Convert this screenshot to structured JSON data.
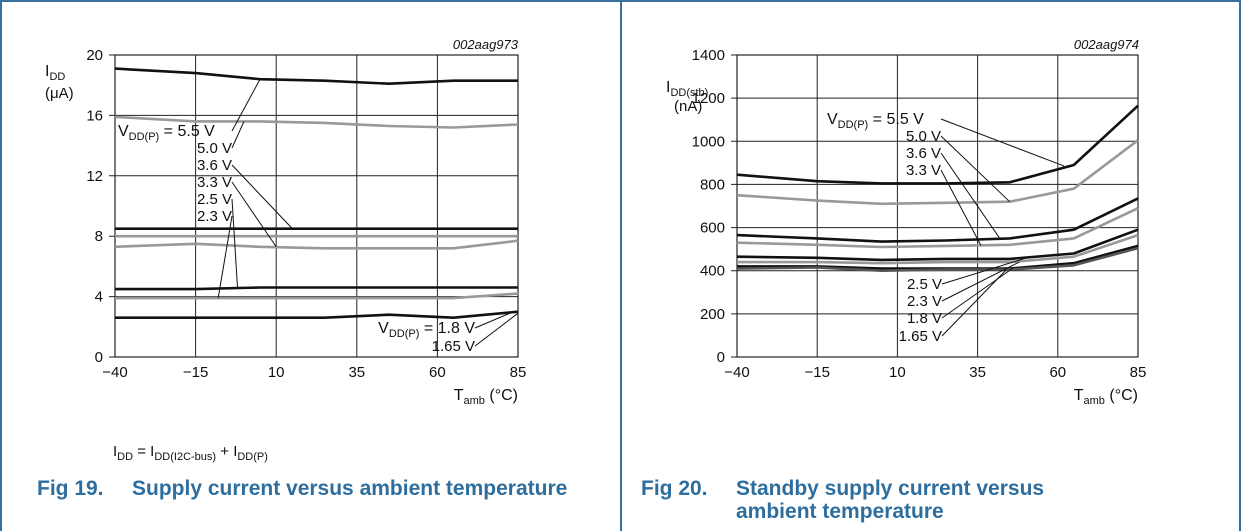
{
  "charts": [
    {
      "id": "fig19",
      "code": "002aag973",
      "ylabel_main": "I",
      "ylabel_sub": "DD",
      "ylabel_unit": "(μA)",
      "xlabel_main": "T",
      "xlabel_sub": "amb",
      "xlabel_unit": " (°C)",
      "xticks": [
        "−40",
        "−15",
        "10",
        "35",
        "60",
        "85"
      ],
      "yticks": [
        "0",
        "4",
        "8",
        "12",
        "16",
        "20"
      ],
      "labels_top": {
        "prefix_main": "V",
        "prefix_sub": "DD(P)",
        "first": " = 5.5 V",
        "rest": [
          "5.0 V",
          "3.6 V",
          "3.3 V",
          "2.5 V",
          "2.3 V"
        ]
      },
      "labels_bottom": {
        "prefix_main": "V",
        "prefix_sub": "DD(P)",
        "first": " = 1.8 V",
        "rest": [
          "1.65 V"
        ]
      },
      "caption_num": "Fig 19.",
      "caption_text": "Supply current versus ambient temperature"
    },
    {
      "id": "fig20",
      "code": "002aag974",
      "ylabel_main": "I",
      "ylabel_sub": "DD(stb)",
      "ylabel_unit": "(nA)",
      "xlabel_main": "T",
      "xlabel_sub": "amb",
      "xlabel_unit": " (°C)",
      "xticks": [
        "−40",
        "−15",
        "10",
        "35",
        "60",
        "85"
      ],
      "yticks": [
        "0",
        "200",
        "400",
        "600",
        "800",
        "1000",
        "1200",
        "1400"
      ],
      "labels_top": {
        "prefix_main": "V",
        "prefix_sub": "DD(P)",
        "first": " = 5.5 V",
        "rest": [
          "5.0 V",
          "3.6 V",
          "3.3 V"
        ]
      },
      "labels_bottom": {
        "rest": [
          "2.5 V",
          "2.3 V",
          "1.8 V",
          "1.65 V"
        ]
      },
      "caption_num": "Fig 20.",
      "caption_line1": "Standby supply current versus",
      "caption_line2": "ambient temperature"
    }
  ],
  "formula": {
    "lhs_main": "I",
    "lhs_sub": "DD",
    "eq": " = ",
    "t1_main": "I",
    "t1_sub": "DD(I2C-bus)",
    "plus": " + ",
    "t2_main": "I",
    "t2_sub": "DD(P)"
  },
  "chart_data": [
    {
      "type": "line",
      "code": "002aag973",
      "title": "Supply current versus ambient temperature",
      "xlabel": "Tamb (°C)",
      "ylabel": "IDD (μA)",
      "xlim": [
        -40,
        85
      ],
      "ylim": [
        0,
        20
      ],
      "x": [
        -40,
        -15,
        5,
        25,
        45,
        65,
        85
      ],
      "series": [
        {
          "name": "VDD(P) = 5.5 V",
          "values": [
            19.1,
            18.8,
            18.4,
            18.3,
            18.1,
            18.3,
            18.3
          ],
          "color": "#111111"
        },
        {
          "name": "5.0 V",
          "values": [
            15.9,
            15.6,
            15.6,
            15.5,
            15.3,
            15.2,
            15.4
          ],
          "color": "#999999"
        },
        {
          "name": "3.6 V",
          "values": [
            8.5,
            8.5,
            8.5,
            8.5,
            8.5,
            8.5,
            8.5
          ],
          "color": "#111111"
        },
        {
          "name": "3.3 V",
          "values": [
            8.0,
            8.0,
            8.0,
            8.0,
            8.0,
            8.0,
            8.0
          ],
          "color": "#999999"
        },
        {
          "name": "2.5 V",
          "values": [
            7.3,
            7.5,
            7.3,
            7.2,
            7.2,
            7.2,
            7.7
          ],
          "color": "#999999"
        },
        {
          "name": "2.3 V",
          "values": [
            4.5,
            4.5,
            4.6,
            4.6,
            4.6,
            4.6,
            4.6
          ],
          "color": "#111111"
        },
        {
          "name": "1.8 V",
          "values": [
            3.9,
            3.9,
            3.9,
            3.9,
            3.9,
            3.9,
            4.2
          ],
          "color": "#999999"
        },
        {
          "name": "1.65 V",
          "values": [
            2.6,
            2.6,
            2.6,
            2.6,
            2.8,
            2.6,
            3.0
          ],
          "color": "#111111"
        }
      ]
    },
    {
      "type": "line",
      "code": "002aag974",
      "title": "Standby supply current versus ambient temperature",
      "xlabel": "Tamb (°C)",
      "ylabel": "IDD(stb) (nA)",
      "xlim": [
        -40,
        85
      ],
      "ylim": [
        0,
        1400
      ],
      "x": [
        -40,
        -15,
        5,
        25,
        45,
        65,
        85
      ],
      "series": [
        {
          "name": "VDD(P) = 5.5 V",
          "values": [
            845,
            815,
            805,
            805,
            810,
            890,
            1165
          ],
          "color": "#111111"
        },
        {
          "name": "5.0 V",
          "values": [
            750,
            725,
            710,
            715,
            720,
            780,
            1005
          ],
          "color": "#999999"
        },
        {
          "name": "3.6 V",
          "values": [
            565,
            550,
            535,
            540,
            550,
            590,
            735
          ],
          "color": "#111111"
        },
        {
          "name": "3.3 V",
          "values": [
            530,
            520,
            510,
            515,
            520,
            550,
            690
          ],
          "color": "#999999"
        },
        {
          "name": "2.5 V",
          "values": [
            465,
            460,
            450,
            455,
            455,
            480,
            590
          ],
          "color": "#111111"
        },
        {
          "name": "2.3 V",
          "values": [
            440,
            440,
            435,
            440,
            440,
            465,
            565
          ],
          "color": "#999999"
        },
        {
          "name": "1.8 V",
          "values": [
            420,
            420,
            410,
            410,
            410,
            435,
            515
          ],
          "color": "#111111"
        },
        {
          "name": "1.65 V",
          "values": [
            410,
            415,
            400,
            405,
            405,
            425,
            505
          ],
          "color": "#555555"
        }
      ]
    }
  ]
}
